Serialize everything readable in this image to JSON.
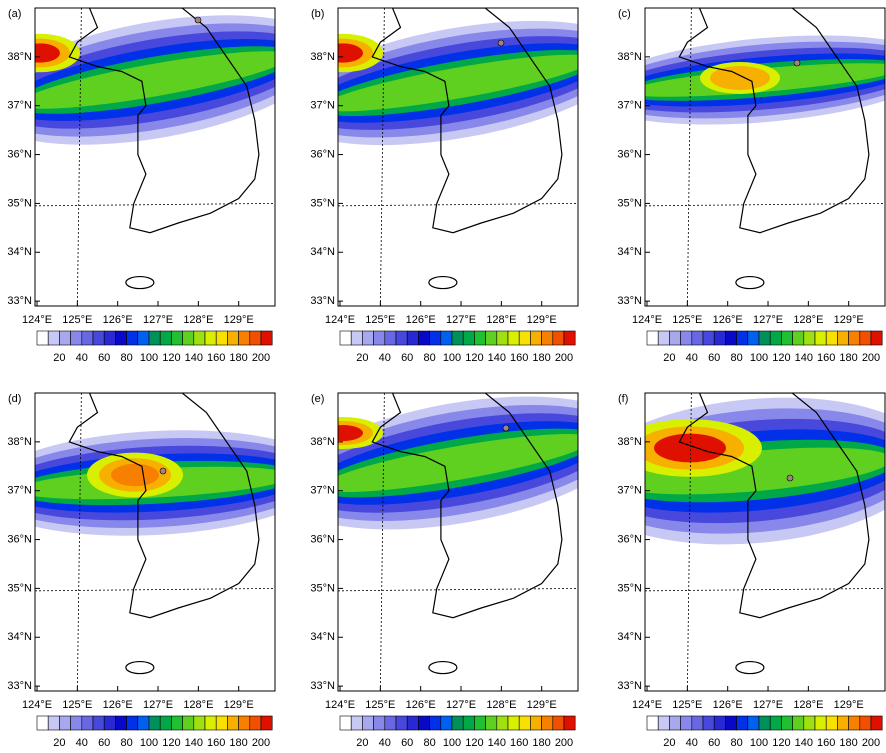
{
  "panels": [
    {
      "label": "(a)"
    },
    {
      "label": "(b)"
    },
    {
      "label": "(c)"
    },
    {
      "label": "(d)"
    },
    {
      "label": "(e)"
    },
    {
      "label": "(f)"
    }
  ],
  "lat_labels": [
    "38°N",
    "37°N",
    "36°N",
    "35°N",
    "34°N",
    "33°N"
  ],
  "lon_labels": [
    "124°E",
    "125°E",
    "126°E",
    "127°E",
    "128°E",
    "129°E"
  ],
  "colorbar": {
    "levels": [
      20,
      40,
      60,
      80,
      100,
      120,
      140,
      160,
      180,
      200
    ],
    "colors": [
      "#ffffff",
      "#c8c8f5",
      "#a8a8ee",
      "#8888ea",
      "#6868e4",
      "#4848dc",
      "#2828d4",
      "#0808c8",
      "#0030e8",
      "#0060f0",
      "#00905a",
      "#00a848",
      "#20c030",
      "#60d020",
      "#a0e010",
      "#d8f000",
      "#f8e000",
      "#f8b000",
      "#f88000",
      "#f05000",
      "#e01000"
    ]
  }
}
